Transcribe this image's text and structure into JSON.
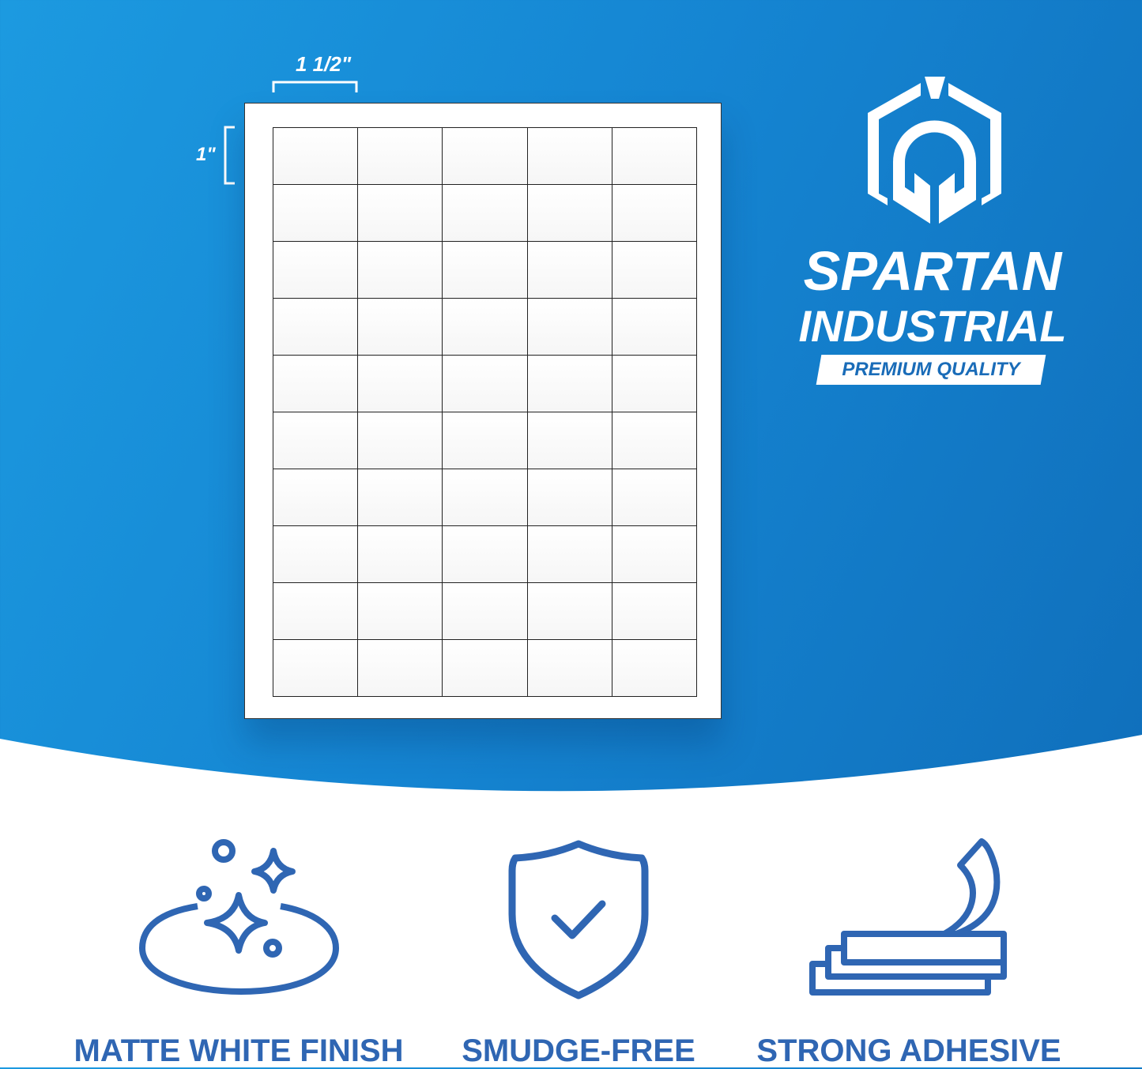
{
  "dimensions": {
    "width_label": "1 1/2\"",
    "height_label": "1\""
  },
  "sheet": {
    "columns": 5,
    "rows": 10
  },
  "brand": {
    "line1": "SPARTAN",
    "line2": "INDUSTRIAL",
    "tagline": "PREMIUM QUALITY",
    "logo_icon": "spartan-helmet-icon"
  },
  "features": [
    {
      "icon": "sparkle-icon",
      "label": "MATTE WHITE FINISH"
    },
    {
      "icon": "shield-check-icon",
      "label": "SMUDGE-FREE"
    },
    {
      "icon": "peeling-label-icon",
      "label": "STRONG ADHESIVE"
    }
  ],
  "colors": {
    "background_blue": "#1585d2",
    "icon_blue": "#2f66b3",
    "white": "#ffffff"
  }
}
